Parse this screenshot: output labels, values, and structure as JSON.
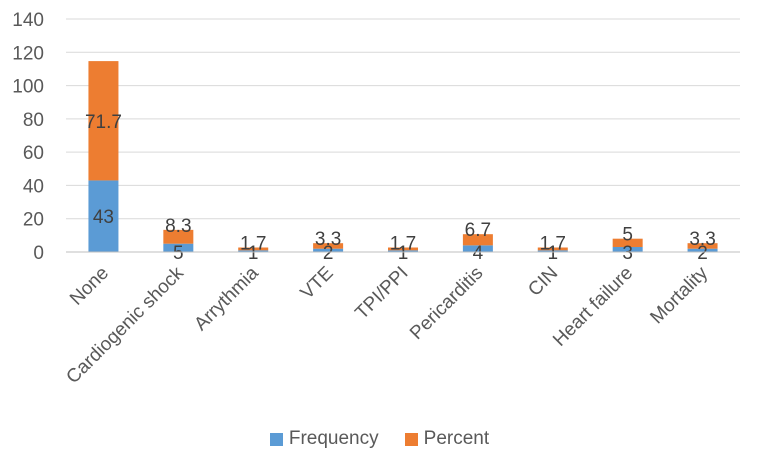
{
  "chart_data": {
    "type": "bar",
    "stacked": true,
    "categories": [
      "None",
      "Cardiogenic shock",
      "Arrythmia",
      "VTE",
      "TPI/PPI",
      "Pericarditis",
      "CIN",
      "Heart failure",
      "Mortality"
    ],
    "series": [
      {
        "name": "Frequency",
        "color": "#5B9BD5",
        "values": [
          43,
          5,
          1,
          2,
          1,
          4,
          1,
          3,
          2
        ],
        "labels": [
          "43",
          "5",
          "1",
          "2",
          "1",
          "4",
          "1",
          "3",
          "2"
        ]
      },
      {
        "name": "Percent",
        "color": "#ED7D31",
        "values": [
          71.7,
          8.3,
          1.7,
          3.3,
          1.7,
          6.7,
          1.7,
          5,
          3.3
        ],
        "labels": [
          "71.7",
          "8.3",
          "1.7",
          "3.3",
          "1.7",
          "6.7",
          "1.7",
          "5",
          "3.3"
        ]
      }
    ],
    "ylim": [
      0,
      140
    ],
    "yticks": [
      "0",
      "20",
      "40",
      "60",
      "80",
      "100",
      "120",
      "140"
    ],
    "grid": true,
    "legend_position": "bottom"
  }
}
